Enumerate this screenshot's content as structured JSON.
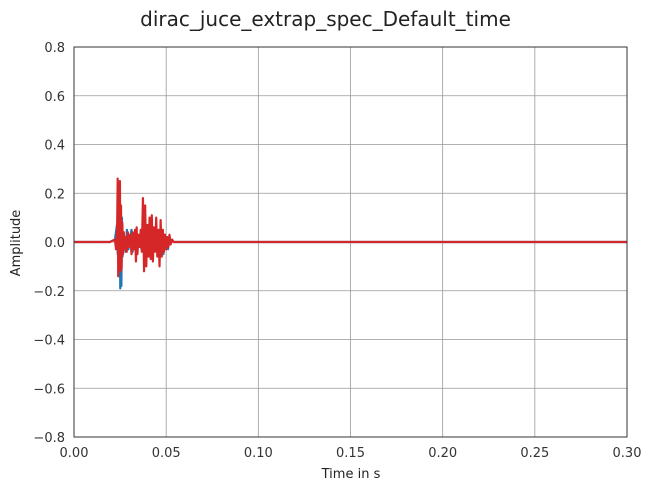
{
  "chart_data": {
    "type": "line",
    "title": "dirac_juce_extrap_spec_Default_time",
    "xlabel": "Time in s",
    "ylabel": "Amplitude",
    "xlim": [
      0.0,
      0.3
    ],
    "ylim": [
      -0.8,
      0.8
    ],
    "xticks": [
      0.0,
      0.05,
      0.1,
      0.15,
      0.2,
      0.25,
      0.3
    ],
    "xtick_labels": [
      "0.00",
      "0.05",
      "0.10",
      "0.15",
      "0.20",
      "0.25",
      "0.30"
    ],
    "yticks": [
      -0.8,
      -0.6,
      -0.4,
      -0.2,
      0.0,
      0.2,
      0.4,
      0.6,
      0.8
    ],
    "ytick_labels": [
      "−0.8",
      "−0.6",
      "−0.4",
      "−0.2",
      "0.0",
      "0.2",
      "0.4",
      "0.6",
      "0.8"
    ],
    "grid": true,
    "series": [
      {
        "color": "#1f77b4",
        "x": [
          0.0,
          0.0195,
          0.0222,
          0.0235,
          0.0237,
          0.0239,
          0.0241,
          0.0243,
          0.0245,
          0.0248,
          0.0251,
          0.0254,
          0.0257,
          0.026,
          0.0263,
          0.0266,
          0.027,
          0.0274,
          0.028,
          0.0287,
          0.0295,
          0.0305,
          0.0312,
          0.0318,
          0.0325,
          0.0332,
          0.0337,
          0.0342,
          0.0348,
          0.0353,
          0.036,
          0.0366,
          0.0372,
          0.0378,
          0.0385,
          0.0391,
          0.0398,
          0.0405,
          0.0412,
          0.0418,
          0.0424,
          0.043,
          0.0436,
          0.0442,
          0.0448,
          0.0455,
          0.0462,
          0.047,
          0.0478,
          0.0485,
          0.0492,
          0.0498,
          0.0504,
          0.051,
          0.0516,
          0.0522,
          0.053,
          0.054,
          0.3
        ],
        "y": [
          0.0,
          0.0,
          0.01,
          0.08,
          -0.05,
          0.24,
          -0.14,
          0.17,
          -0.1,
          0.22,
          -0.19,
          0.12,
          -0.18,
          0.1,
          -0.06,
          0.03,
          -0.02,
          0.01,
          -0.04,
          0.05,
          -0.03,
          0.02,
          0.05,
          -0.04,
          0.02,
          -0.02,
          0.03,
          -0.05,
          0.02,
          -0.02,
          0.01,
          -0.03,
          0.02,
          -0.02,
          0.06,
          -0.05,
          0.04,
          -0.04,
          0.02,
          -0.02,
          0.05,
          -0.03,
          0.03,
          -0.02,
          0.01,
          -0.02,
          0.04,
          -0.03,
          0.02,
          -0.05,
          0.03,
          -0.02,
          0.02,
          -0.03,
          0.01,
          -0.01,
          0.005,
          0.0,
          0.0
        ]
      },
      {
        "color": "#d62728",
        "x": [
          0.0,
          0.0195,
          0.0222,
          0.0228,
          0.0234,
          0.0237,
          0.024,
          0.0243,
          0.0246,
          0.0249,
          0.0252,
          0.0255,
          0.0258,
          0.0262,
          0.0266,
          0.027,
          0.0275,
          0.028,
          0.0286,
          0.0292,
          0.0298,
          0.0305,
          0.0312,
          0.0318,
          0.0325,
          0.0331,
          0.0336,
          0.034,
          0.0344,
          0.035,
          0.0356,
          0.0362,
          0.0368,
          0.0374,
          0.038,
          0.0386,
          0.0392,
          0.0398,
          0.0404,
          0.041,
          0.0416,
          0.0422,
          0.0428,
          0.0434,
          0.044,
          0.0446,
          0.0452,
          0.0458,
          0.0464,
          0.047,
          0.0476,
          0.0482,
          0.0488,
          0.0494,
          0.05,
          0.0506,
          0.0512,
          0.0518,
          0.0524,
          0.0532,
          0.054,
          0.3
        ],
        "y": [
          0.0,
          0.0,
          0.01,
          -0.03,
          0.05,
          0.26,
          -0.14,
          0.18,
          -0.05,
          0.25,
          -0.12,
          0.15,
          -0.11,
          0.08,
          -0.05,
          0.04,
          -0.03,
          0.02,
          -0.04,
          0.04,
          -0.02,
          0.03,
          -0.05,
          0.04,
          -0.03,
          0.05,
          -0.08,
          0.06,
          -0.05,
          0.03,
          -0.02,
          0.05,
          -0.04,
          0.18,
          -0.12,
          0.15,
          -0.1,
          0.07,
          -0.06,
          0.1,
          -0.07,
          0.11,
          -0.08,
          0.06,
          -0.04,
          0.1,
          -0.06,
          0.05,
          -0.1,
          0.09,
          -0.06,
          0.05,
          -0.04,
          0.03,
          -0.03,
          0.02,
          -0.02,
          0.03,
          -0.01,
          0.01,
          0.0,
          0.0
        ]
      }
    ]
  }
}
